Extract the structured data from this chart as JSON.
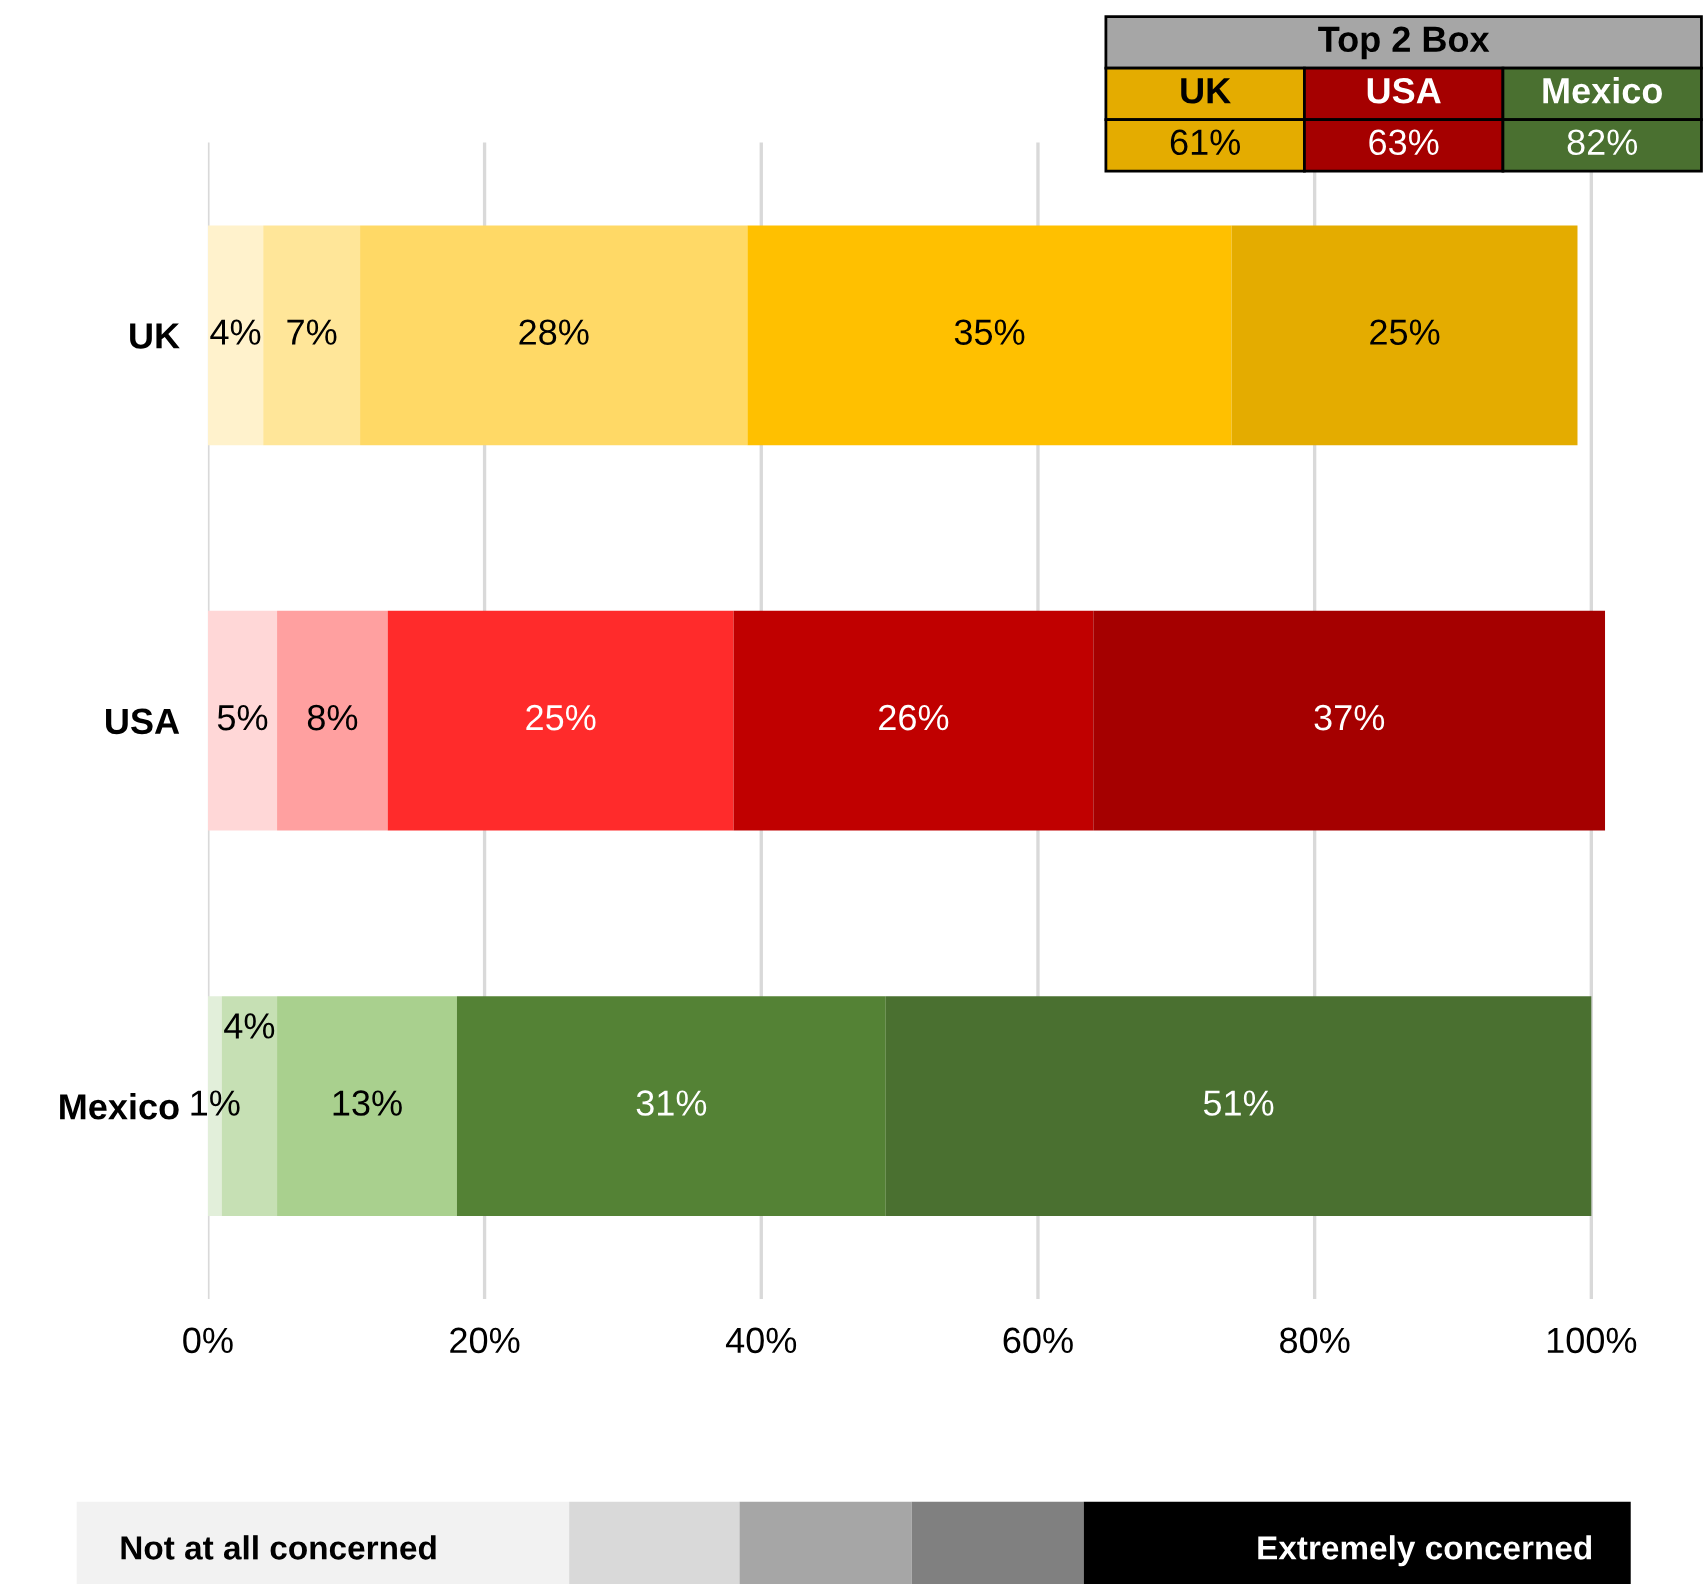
{
  "chart_data": {
    "type": "bar",
    "orientation": "horizontal",
    "stacked": true,
    "grid": "x",
    "categories": [
      "UK",
      "USA",
      "Mexico"
    ],
    "series": [
      {
        "colors": [
          "#fff2cc",
          "#ffd7d7",
          "#e2efda"
        ],
        "values": [
          4,
          5,
          1
        ],
        "value_labels": [
          "4%",
          "5%",
          "1%"
        ]
      },
      {
        "colors": [
          "#ffe699",
          "#ffa0a0",
          "#c6e0b4"
        ],
        "values": [
          7,
          8,
          4
        ],
        "value_labels": [
          "7%",
          "8%",
          "4%"
        ]
      },
      {
        "colors": [
          "#ffd966",
          "#ff2b2b",
          "#a9d08e"
        ],
        "values": [
          28,
          25,
          13
        ],
        "value_labels": [
          "28%",
          "25%",
          "13%"
        ]
      },
      {
        "colors": [
          "#ffc000",
          "#c00000",
          "#548235"
        ],
        "values": [
          35,
          26,
          31
        ],
        "value_labels": [
          "35%",
          "26%",
          "31%"
        ]
      },
      {
        "colors": [
          "#e4ac00",
          "#a50000",
          "#4a7030"
        ],
        "values": [
          25,
          37,
          51
        ],
        "value_labels": [
          "25%",
          "37%",
          "51%"
        ]
      }
    ],
    "xlim": [
      0,
      101
    ],
    "xticks": [
      {
        "value": 0,
        "label": "0%"
      },
      {
        "value": 20,
        "label": "20%"
      },
      {
        "value": 40,
        "label": "40%"
      },
      {
        "value": 60,
        "label": "60%"
      },
      {
        "value": 80,
        "label": "80%"
      },
      {
        "value": 100,
        "label": "100%"
      }
    ],
    "annotations": [
      "Top 2 Box",
      "UK",
      "USA",
      "Mexico",
      "61%",
      "63%",
      "82%",
      "Not at all concerned",
      "Extremely concerned"
    ]
  }
}
